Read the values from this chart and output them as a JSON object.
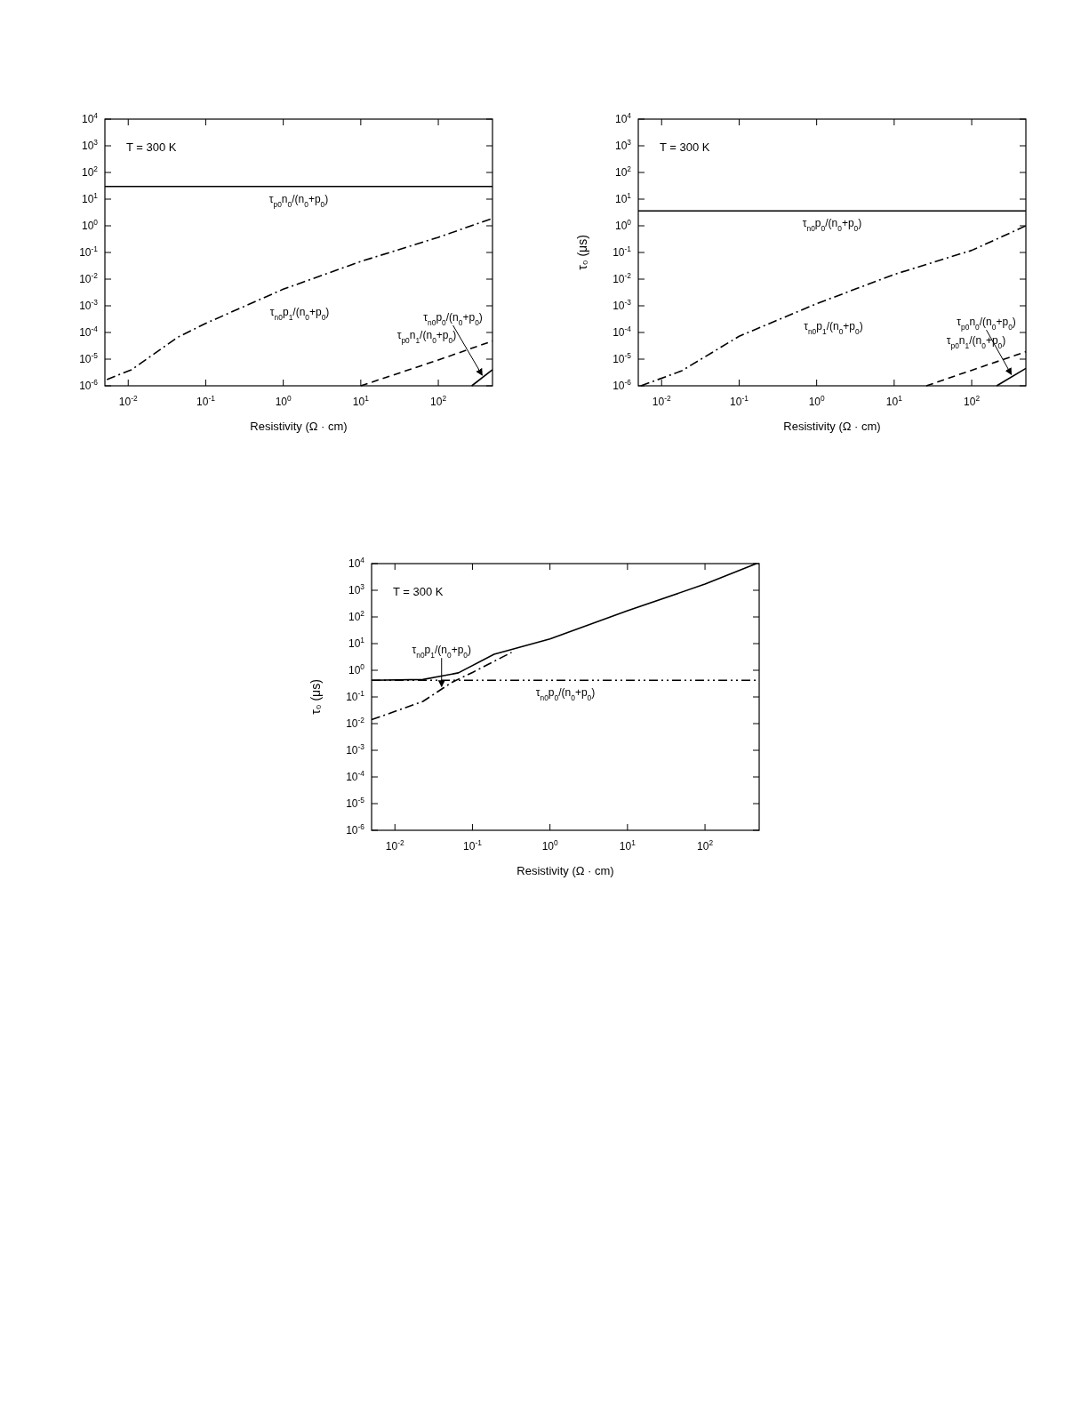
{
  "chart_data": [
    {
      "type": "line",
      "xlabel": "Resistivity (Ω · cm)",
      "annotations": [
        "T = 300 K"
      ],
      "log": "xy",
      "xlim": [
        0.005,
        500
      ],
      "ylim": [
        1e-06,
        10000
      ],
      "xticks": [
        {
          "value": 0.01,
          "label": "10$^{-2}$"
        },
        {
          "value": 0.1,
          "label": "10$^{-1}$"
        },
        {
          "value": 1,
          "label": "10$^{0}$"
        },
        {
          "value": 10,
          "label": "10$^{1}$"
        },
        {
          "value": 100,
          "label": "10$^{2}$"
        }
      ],
      "yticks": [
        {
          "value": 1e-06,
          "label": "10$^{-6}$"
        },
        {
          "value": 1e-05,
          "label": "10$^{-5}$"
        },
        {
          "value": 0.0001,
          "label": "10$^{-4}$"
        },
        {
          "value": 0.001,
          "label": "10$^{-3}$"
        },
        {
          "value": 0.01,
          "label": "10$^{-2}$"
        },
        {
          "value": 0.1,
          "label": "10$^{-1}$"
        },
        {
          "value": 1,
          "label": "10$^{0}$"
        },
        {
          "value": 10,
          "label": "10$^{1}$"
        },
        {
          "value": 100,
          "label": "10$^{2}$"
        },
        {
          "value": 1000,
          "label": "10$^{3}$"
        },
        {
          "value": 10000,
          "label": "10$^{4}$"
        }
      ],
      "series": [
        {
          "name": "τ$_{p0}$n$_{0}$/(n$_{0}$+p$_{0}$)",
          "color": "#000000",
          "line_style": "solid",
          "x": [
            0.005,
            500
          ],
          "values": [
            30,
            30
          ]
        },
        {
          "name": "τ$_{n0}$p$_{1}$/(n$_{0}$+p$_{0}$)",
          "color": "#000000",
          "line_style": "dashdot",
          "x": [
            0.0053,
            0.011,
            0.043,
            0.1,
            1,
            10,
            100,
            500
          ],
          "values": [
            1.7e-06,
            4e-06,
            6.5e-05,
            0.00022,
            0.0042,
            0.046,
            0.37,
            1.9
          ]
        },
        {
          "name": "τ$_{p0}$n$_{1}$/(n$_{0}$+p$_{0}$)",
          "color": "#000000",
          "line_style": "dashed",
          "x": [
            10,
            100,
            500
          ],
          "values": [
            1e-06,
            9.3e-06,
            4.8e-05
          ]
        },
        {
          "name": "τ$_{n0}$p$_{0}$/(n$_{0}$+p$_{0}$)",
          "color": "#000000",
          "line_style": "solid",
          "x": [
            270,
            500
          ],
          "values": [
            1e-06,
            4e-06
          ]
        }
      ]
    },
    {
      "type": "line",
      "xlabel": "Resistivity (Ω · cm)",
      "ylabel": "τ₀ (μs)",
      "annotations": [
        "T = 300 K"
      ],
      "log": "xy",
      "xlim": [
        0.005,
        500
      ],
      "ylim": [
        1e-06,
        10000
      ],
      "xticks": [
        {
          "value": 0.01,
          "label": "10$^{-2}$"
        },
        {
          "value": 0.1,
          "label": "10$^{-1}$"
        },
        {
          "value": 1,
          "label": "10$^{0}$"
        },
        {
          "value": 10,
          "label": "10$^{1}$"
        },
        {
          "value": 100,
          "label": "10$^{2}$"
        }
      ],
      "yticks": [
        {
          "value": 1e-06,
          "label": "10$^{-6}$"
        },
        {
          "value": 1e-05,
          "label": "10$^{-5}$"
        },
        {
          "value": 0.0001,
          "label": "10$^{-4}$"
        },
        {
          "value": 0.001,
          "label": "10$^{-3}$"
        },
        {
          "value": 0.01,
          "label": "10$^{-2}$"
        },
        {
          "value": 0.1,
          "label": "10$^{-1}$"
        },
        {
          "value": 1,
          "label": "10$^{0}$"
        },
        {
          "value": 10,
          "label": "10$^{1}$"
        },
        {
          "value": 100,
          "label": "10$^{2}$"
        },
        {
          "value": 1000,
          "label": "10$^{3}$"
        },
        {
          "value": 10000,
          "label": "10$^{4}$"
        }
      ],
      "series": [
        {
          "name": "τ$_{n0}$p$_{0}$/(n$_{0}$+p$_{0}$)",
          "color": "#000000",
          "line_style": "solid",
          "x": [
            0.005,
            500
          ],
          "values": [
            3.6,
            3.6
          ]
        },
        {
          "name": "τ$_{n0}$p$_{1}$/(n$_{0}$+p$_{0}$)",
          "color": "#000000",
          "line_style": "dashdot",
          "x": [
            0.0054,
            0.018,
            0.1,
            1,
            10,
            100,
            500
          ],
          "values": [
            1e-06,
            3.6e-06,
            7.2e-05,
            0.0012,
            0.015,
            0.12,
            1
          ]
        },
        {
          "name": "τ$_{p0}$n$_{1}$/(n$_{0}$+p$_{0}$)",
          "color": "#000000",
          "line_style": "dashed",
          "x": [
            26,
            500
          ],
          "values": [
            1e-06,
            1.9e-05
          ]
        },
        {
          "name": "τ$_{p0}$n$_{0}$/(n$_{0}$+p$_{0}$)",
          "color": "#000000",
          "line_style": "solid",
          "x": [
            210,
            500
          ],
          "values": [
            1e-06,
            4.5e-06
          ]
        }
      ]
    },
    {
      "type": "line",
      "xlabel": "Resistivity (Ω · cm)",
      "ylabel": "τ₀ (μs)",
      "annotations": [
        "T = 300 K"
      ],
      "log": "xy",
      "xlim": [
        0.005,
        500
      ],
      "ylim": [
        1e-06,
        10000
      ],
      "xticks": [
        {
          "value": 0.01,
          "label": "10$^{-2}$"
        },
        {
          "value": 0.1,
          "label": "10$^{-1}$"
        },
        {
          "value": 1,
          "label": "10$^{0}$"
        },
        {
          "value": 10,
          "label": "10$^{1}$"
        },
        {
          "value": 100,
          "label": "10$^{2}$"
        }
      ],
      "yticks": [
        {
          "value": 1e-06,
          "label": "10$^{-6}$"
        },
        {
          "value": 1e-05,
          "label": "10$^{-5}$"
        },
        {
          "value": 0.0001,
          "label": "10$^{-4}$"
        },
        {
          "value": 0.001,
          "label": "10$^{-3}$"
        },
        {
          "value": 0.01,
          "label": "10$^{-2}$"
        },
        {
          "value": 0.1,
          "label": "10$^{-1}$"
        },
        {
          "value": 1,
          "label": "10$^{0}$"
        },
        {
          "value": 10,
          "label": "10$^{1}$"
        },
        {
          "value": 100,
          "label": "10$^{2}$"
        },
        {
          "value": 1000,
          "label": "10$^{3}$"
        },
        {
          "value": 10000,
          "label": "10$^{4}$"
        }
      ],
      "series": [
        {
          "color": "#000000",
          "line_style": "solid",
          "x": [
            0.005,
            0.023,
            0.066,
            0.19,
            1,
            10,
            100,
            460
          ],
          "values": [
            0.42,
            0.45,
            0.8,
            4,
            15,
            170,
            1700,
            10000
          ]
        },
        {
          "name": "τ$_{n0}$p$_{1}$/(n$_{0}$+p$_{0}$)",
          "color": "#000000",
          "line_style": "dashdot",
          "x": [
            0.005,
            0.023,
            0.054,
            0.1,
            0.32
          ],
          "values": [
            0.014,
            0.068,
            0.35,
            0.83,
            4.7
          ]
        },
        {
          "name": "τ$_{n0}$p$_{0}$/(n$_{0}$+p$_{0}$)",
          "color": "#000000",
          "line_style": "dashdotdot",
          "x": [
            0.005,
            500
          ],
          "values": [
            0.42,
            0.42
          ]
        }
      ]
    }
  ]
}
